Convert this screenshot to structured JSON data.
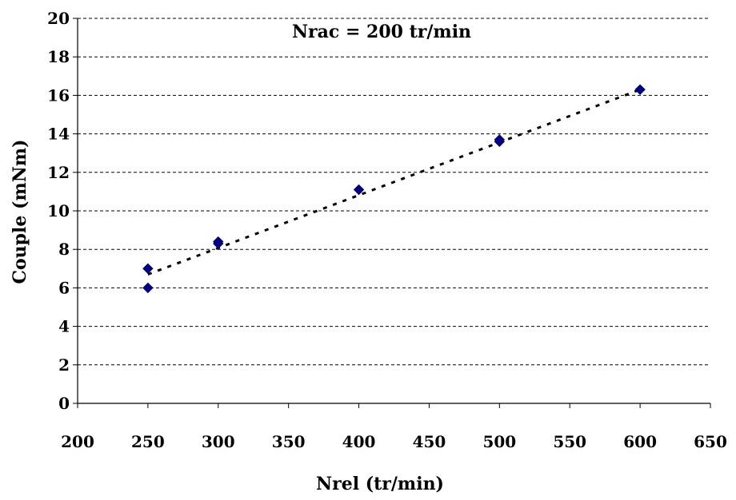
{
  "chart_data": {
    "type": "scatter",
    "title": "",
    "annotation": "Nrac = 200 tr/min",
    "xlabel": "Nrel (tr/min)",
    "ylabel": "Couple (mNm)",
    "xlim": [
      200,
      650
    ],
    "ylim": [
      0,
      20
    ],
    "x_ticks": [
      200,
      250,
      300,
      350,
      400,
      450,
      500,
      550,
      600,
      650
    ],
    "y_ticks": [
      0,
      2,
      4,
      6,
      8,
      10,
      12,
      14,
      16,
      18,
      20
    ],
    "grid": "horizontal-dashed",
    "series": [
      {
        "points": [
          {
            "x": 250,
            "y": 7.0
          },
          {
            "x": 250,
            "y": 6.0
          },
          {
            "x": 300,
            "y": 8.4
          },
          {
            "x": 300,
            "y": 8.3
          },
          {
            "x": 400,
            "y": 11.1
          },
          {
            "x": 500,
            "y": 13.7
          },
          {
            "x": 500,
            "y": 13.6
          },
          {
            "x": 600,
            "y": 16.3
          }
        ],
        "color": "#000080",
        "marker": "diamond"
      }
    ],
    "trendline": {
      "type": "linear",
      "x": [
        250,
        600
      ],
      "y": [
        6.7,
        16.3
      ],
      "style": "dotted",
      "color": "#000000"
    }
  }
}
